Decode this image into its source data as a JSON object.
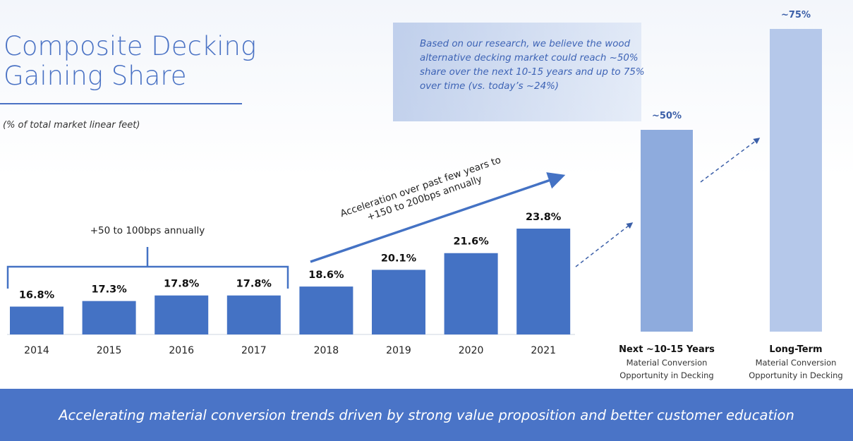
{
  "title": "Composite Decking Gaining Share",
  "subtitle": "(% of total market linear feet)",
  "callout": "Based on our research, we believe the wood alternative decking market could reach ~50% share over the next 10-15 years and up to 75% over time (vs. today’s ~24%)",
  "banner": "Accelerating material conversion trends driven by strong value proposition and better customer education",
  "annotations": {
    "bracket": "+50 to 100bps annually",
    "arrow_line1": "Acceleration over past few years to",
    "arrow_line2": "+150 to 200bps annually"
  },
  "colors": {
    "historical_bar": "#4472c4",
    "projection_mid": "#8eabdd",
    "projection_long": "#b5c8ea",
    "accent": "#4a72c4"
  },
  "chart_data": [
    {
      "type": "bar",
      "categories": [
        "2014",
        "2015",
        "2016",
        "2017",
        "2018",
        "2019",
        "2020",
        "2021"
      ],
      "values": [
        16.8,
        17.3,
        17.8,
        17.8,
        18.6,
        20.1,
        21.6,
        23.8
      ],
      "labels": [
        "16.8%",
        "17.3%",
        "17.8%",
        "17.8%",
        "18.6%",
        "20.1%",
        "21.6%",
        "23.8%"
      ],
      "title": "",
      "xlabel": "",
      "ylabel": "(% of total market linear feet)",
      "grid": false
    },
    {
      "type": "bar",
      "categories": [
        "Next ~10-15 Years",
        "Long-Term"
      ],
      "values": [
        50,
        75
      ],
      "labels": [
        "~50%",
        "~75%"
      ],
      "descriptions": [
        [
          "Material Conversion",
          "Opportunity in Decking"
        ],
        [
          "Material Conversion",
          "Opportunity in Decking"
        ]
      ]
    }
  ]
}
